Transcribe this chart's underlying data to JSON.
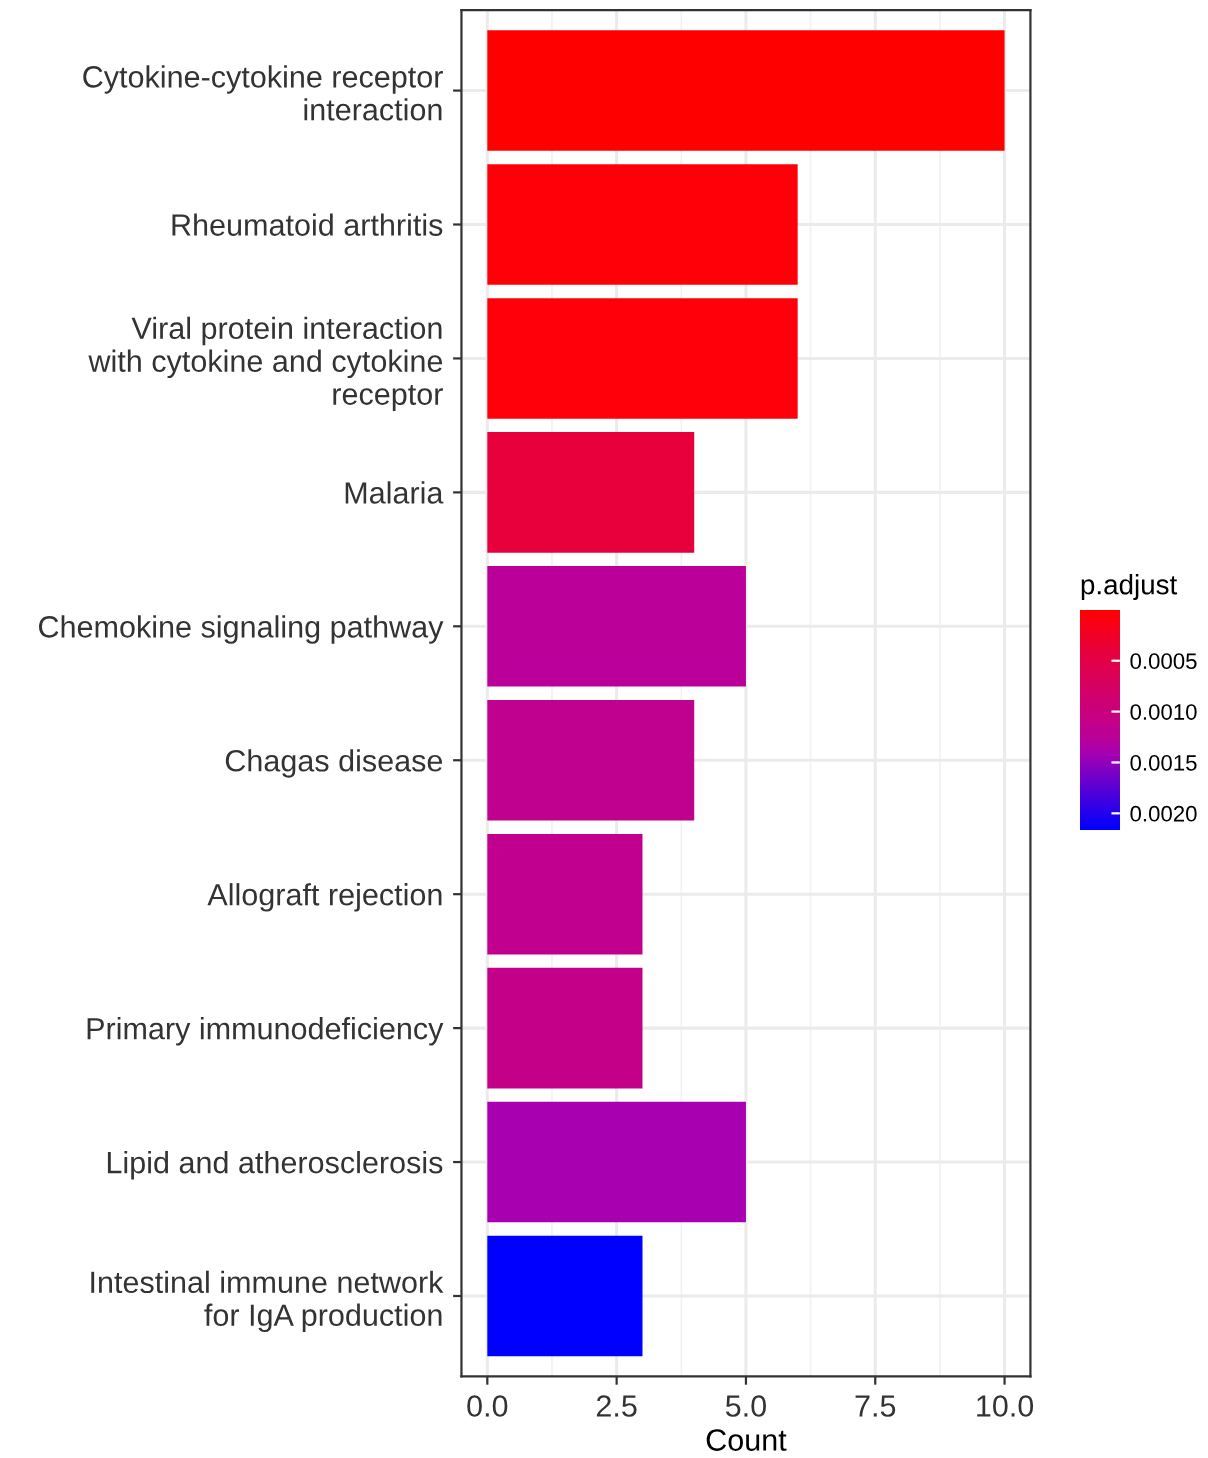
{
  "chart_data": {
    "type": "bar",
    "orientation": "horizontal",
    "xlabel": "Count",
    "clabel": "p.adjust",
    "categories": [
      "Cytokine-cytokine receptor\ninteraction",
      "Rheumatoid arthritis",
      "Viral protein interaction\nwith cytokine and cytokine\nreceptor",
      "Malaria",
      "Chemokine signaling pathway",
      "Chagas disease",
      "Allograft rejection",
      "Primary immunodeficiency",
      "Lipid and atherosclerosis",
      "Intestinal immune network\nfor IgA production"
    ],
    "values": [
      10,
      6,
      6,
      4,
      5,
      4,
      3,
      3,
      5,
      3
    ],
    "cvalues": [
      2e-05,
      4e-05,
      5e-05,
      0.0004,
      0.0012,
      0.0012,
      0.0012,
      0.0011,
      0.0014,
      0.00216
    ],
    "colors": [
      "#ff0000",
      "#ff0008",
      "#ff000a",
      "#e8003c",
      "#bb0099",
      "#c0008f",
      "#c1008f",
      "#c40088",
      "#a800b0",
      "#0000ff"
    ],
    "clim": [
      1e-05,
      0.00216
    ],
    "cticks": [
      {
        "value": 0.0005,
        "label": "0.0005"
      },
      {
        "value": 0.001,
        "label": "0.0010"
      },
      {
        "value": 0.0015,
        "label": "0.0015"
      },
      {
        "value": 0.002,
        "label": "0.0020"
      }
    ],
    "xlim": [
      -0.5,
      10.5
    ],
    "xticks": [
      {
        "value": 0,
        "label": "0.0"
      },
      {
        "value": 2.5,
        "label": "2.5"
      },
      {
        "value": 5,
        "label": "5.0"
      },
      {
        "value": 7.5,
        "label": "7.5"
      },
      {
        "value": 10,
        "label": "10.0"
      }
    ],
    "grid": true
  }
}
